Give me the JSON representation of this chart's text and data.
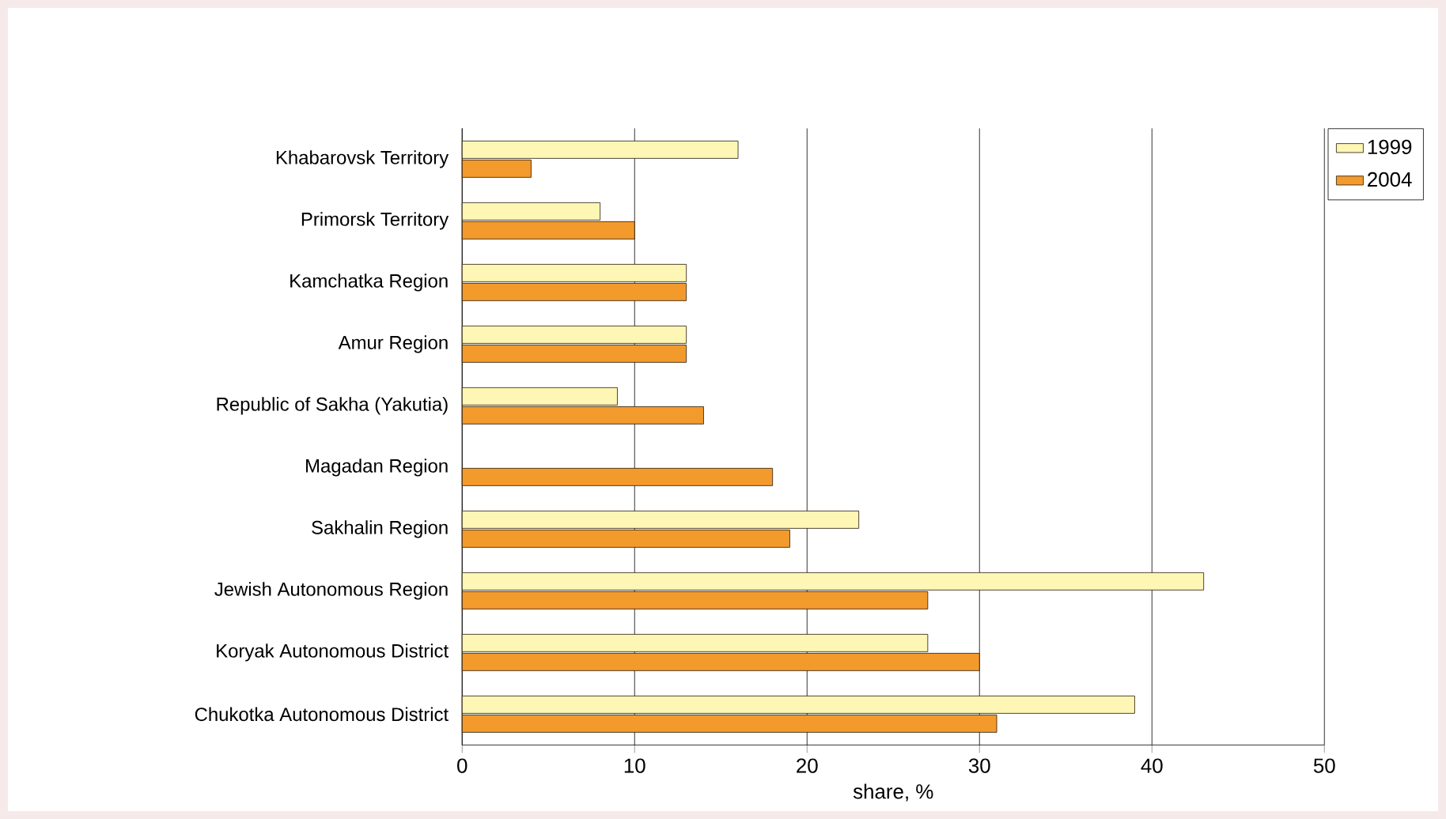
{
  "chart_data": {
    "type": "bar",
    "orientation": "horizontal",
    "xlabel": "share, %",
    "categories": [
      "Khabarovsk Territory",
      "Primorsk Territory",
      "Kamchatka Region",
      "Amur Region",
      "Republic of Sakha (Yakutia)",
      "Magadan Region",
      "Sakhalin Region",
      "Jewish Autonomous Region",
      "Koryak Autonomous District",
      "Chukotka Autonomous District"
    ],
    "series": [
      {
        "name": "1999",
        "color": "#fdf6b4",
        "values": [
          16,
          8,
          13,
          13,
          9,
          null,
          23,
          43,
          27,
          39
        ]
      },
      {
        "name": "2004",
        "color": "#f39a2c",
        "values": [
          4,
          10,
          13,
          13,
          14,
          18,
          19,
          27,
          30,
          31
        ]
      }
    ],
    "xlim": [
      0,
      50
    ],
    "xticks": [
      0,
      10,
      20,
      30,
      40,
      50
    ],
    "grid": "x",
    "legend": "top right"
  }
}
